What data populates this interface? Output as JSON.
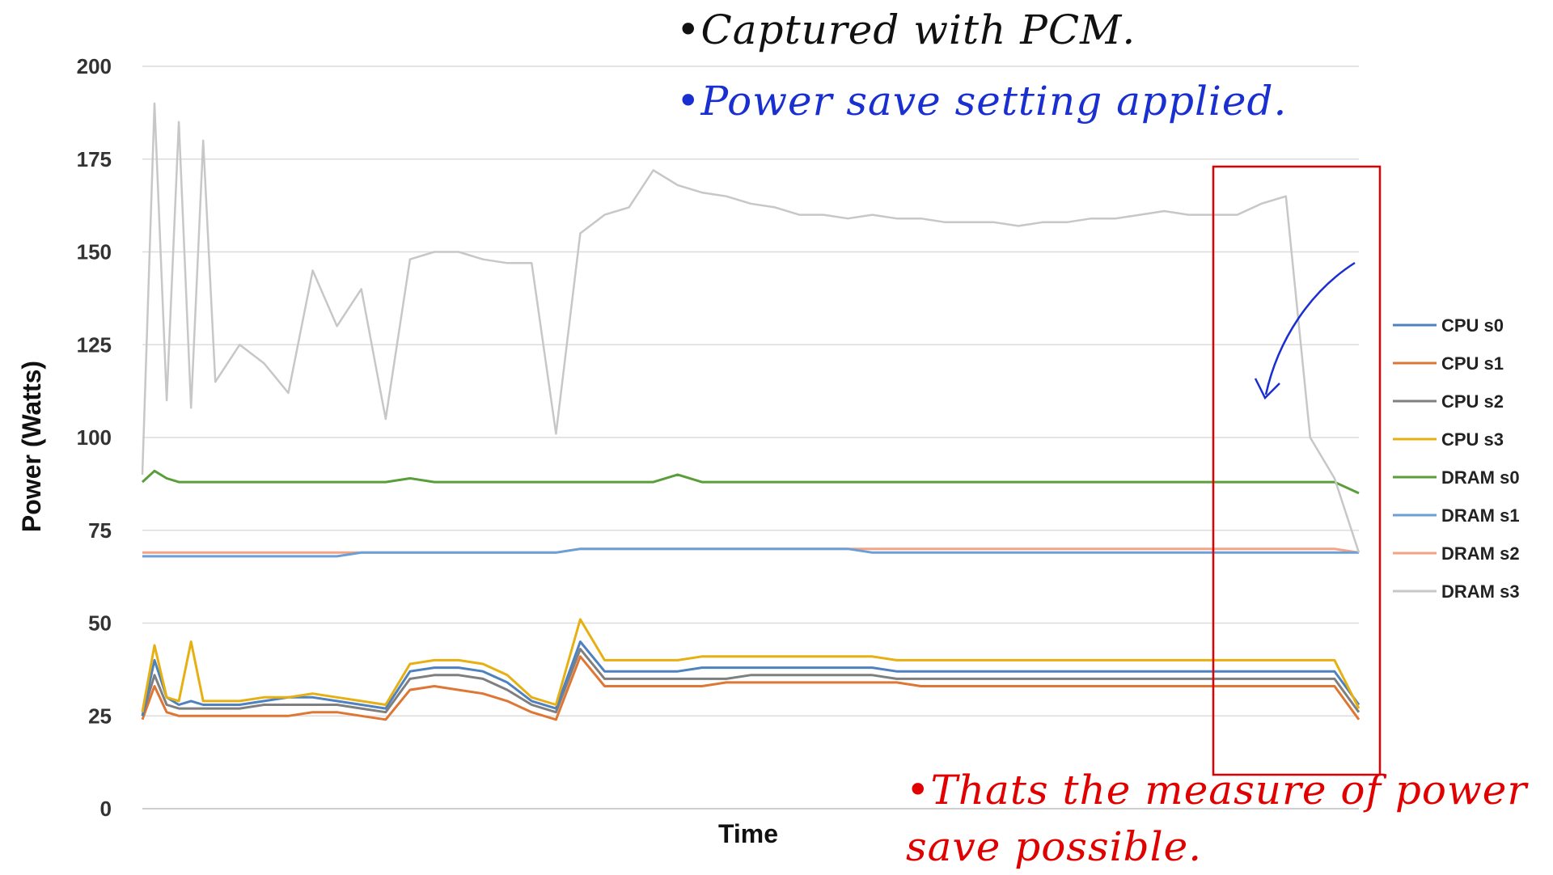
{
  "chart_data": {
    "type": "line",
    "title": "",
    "xlabel": "Time",
    "ylabel": "Power (Watts)",
    "ylim": [
      0,
      200
    ],
    "y_ticks": [
      "0",
      "25",
      "50",
      "75",
      "100",
      "125",
      "150",
      "175",
      "200"
    ],
    "grid": "horizontal",
    "legend_position": "right",
    "x": [
      0,
      1,
      2,
      3,
      4,
      5,
      6,
      8,
      10,
      12,
      14,
      16,
      18,
      20,
      22,
      24,
      26,
      28,
      30,
      32,
      34,
      36,
      38,
      40,
      42,
      44,
      46,
      48,
      50,
      52,
      54,
      56,
      58,
      60,
      62,
      64,
      66,
      68,
      70,
      72,
      74,
      76,
      78,
      80,
      82,
      84,
      86,
      88,
      90,
      92,
      94,
      96,
      98,
      100
    ],
    "series": [
      {
        "name": "CPU s0",
        "color": "#4e81bd",
        "values": [
          25,
          40,
          30,
          28,
          29,
          28,
          28,
          28,
          29,
          30,
          30,
          29,
          28,
          27,
          37,
          38,
          38,
          37,
          34,
          29,
          27,
          45,
          37,
          37,
          37,
          37,
          38,
          38,
          38,
          38,
          38,
          38,
          38,
          38,
          37,
          37,
          37,
          37,
          37,
          37,
          37,
          37,
          37,
          37,
          37,
          37,
          37,
          37,
          37,
          37,
          37,
          37,
          37,
          28
        ]
      },
      {
        "name": "CPU s1",
        "color": "#dd7733",
        "values": [
          24,
          33,
          26,
          25,
          25,
          25,
          25,
          25,
          25,
          25,
          26,
          26,
          25,
          24,
          32,
          33,
          32,
          31,
          29,
          26,
          24,
          41,
          33,
          33,
          33,
          33,
          33,
          34,
          34,
          34,
          34,
          34,
          34,
          34,
          34,
          33,
          33,
          33,
          33,
          33,
          33,
          33,
          33,
          33,
          33,
          33,
          33,
          33,
          33,
          33,
          33,
          33,
          33,
          24
        ]
      },
      {
        "name": "CPU s2",
        "color": "#7f7f7f",
        "values": [
          25,
          36,
          28,
          27,
          27,
          27,
          27,
          27,
          28,
          28,
          28,
          28,
          27,
          26,
          35,
          36,
          36,
          35,
          32,
          28,
          26,
          43,
          35,
          35,
          35,
          35,
          35,
          35,
          36,
          36,
          36,
          36,
          36,
          36,
          35,
          35,
          35,
          35,
          35,
          35,
          35,
          35,
          35,
          35,
          35,
          35,
          35,
          35,
          35,
          35,
          35,
          35,
          35,
          26
        ]
      },
      {
        "name": "CPU s3",
        "color": "#e6b012",
        "values": [
          26,
          44,
          30,
          29,
          45,
          29,
          29,
          29,
          30,
          30,
          31,
          30,
          29,
          28,
          39,
          40,
          40,
          39,
          36,
          30,
          28,
          51,
          40,
          40,
          40,
          40,
          41,
          41,
          41,
          41,
          41,
          41,
          41,
          41,
          40,
          40,
          40,
          40,
          40,
          40,
          40,
          40,
          40,
          40,
          40,
          40,
          40,
          40,
          40,
          40,
          40,
          40,
          40,
          27
        ]
      },
      {
        "name": "DRAM s0",
        "color": "#5a9e3a",
        "values": [
          88,
          91,
          89,
          88,
          88,
          88,
          88,
          88,
          88,
          88,
          88,
          88,
          88,
          88,
          89,
          88,
          88,
          88,
          88,
          88,
          88,
          88,
          88,
          88,
          88,
          90,
          88,
          88,
          88,
          88,
          88,
          88,
          88,
          88,
          88,
          88,
          88,
          88,
          88,
          88,
          88,
          88,
          88,
          88,
          88,
          88,
          88,
          88,
          88,
          88,
          88,
          88,
          88,
          85
        ]
      },
      {
        "name": "DRAM s1",
        "color": "#6a9fd8",
        "values": [
          68,
          68,
          68,
          68,
          68,
          68,
          68,
          68,
          68,
          68,
          68,
          68,
          69,
          69,
          69,
          69,
          69,
          69,
          69,
          69,
          69,
          70,
          70,
          70,
          70,
          70,
          70,
          70,
          70,
          70,
          70,
          70,
          70,
          69,
          69,
          69,
          69,
          69,
          69,
          69,
          69,
          69,
          69,
          69,
          69,
          69,
          69,
          69,
          69,
          69,
          69,
          69,
          69,
          69
        ]
      },
      {
        "name": "DRAM s2",
        "color": "#f4a383",
        "values": [
          69,
          69,
          69,
          69,
          69,
          69,
          69,
          69,
          69,
          69,
          69,
          69,
          69,
          69,
          69,
          69,
          69,
          69,
          69,
          69,
          69,
          70,
          70,
          70,
          70,
          70,
          70,
          70,
          70,
          70,
          70,
          70,
          70,
          70,
          70,
          70,
          70,
          70,
          70,
          70,
          70,
          70,
          70,
          70,
          70,
          70,
          70,
          70,
          70,
          70,
          70,
          70,
          70,
          69
        ]
      },
      {
        "name": "DRAM s3",
        "color": "#c7c7c7",
        "values": [
          90,
          190,
          110,
          185,
          108,
          180,
          115,
          125,
          120,
          112,
          145,
          130,
          140,
          105,
          148,
          150,
          150,
          148,
          147,
          147,
          101,
          155,
          160,
          162,
          172,
          168,
          166,
          165,
          163,
          162,
          160,
          160,
          159,
          160,
          159,
          159,
          158,
          158,
          158,
          157,
          158,
          158,
          159,
          159,
          160,
          161,
          160,
          160,
          160,
          163,
          165,
          100,
          89,
          69
        ]
      }
    ],
    "annotations": {
      "note_top_1": "•Captured with PCM.",
      "note_top_2": "•Power save setting applied.",
      "note_bottom": "•Thats the measure of power save possible."
    }
  }
}
